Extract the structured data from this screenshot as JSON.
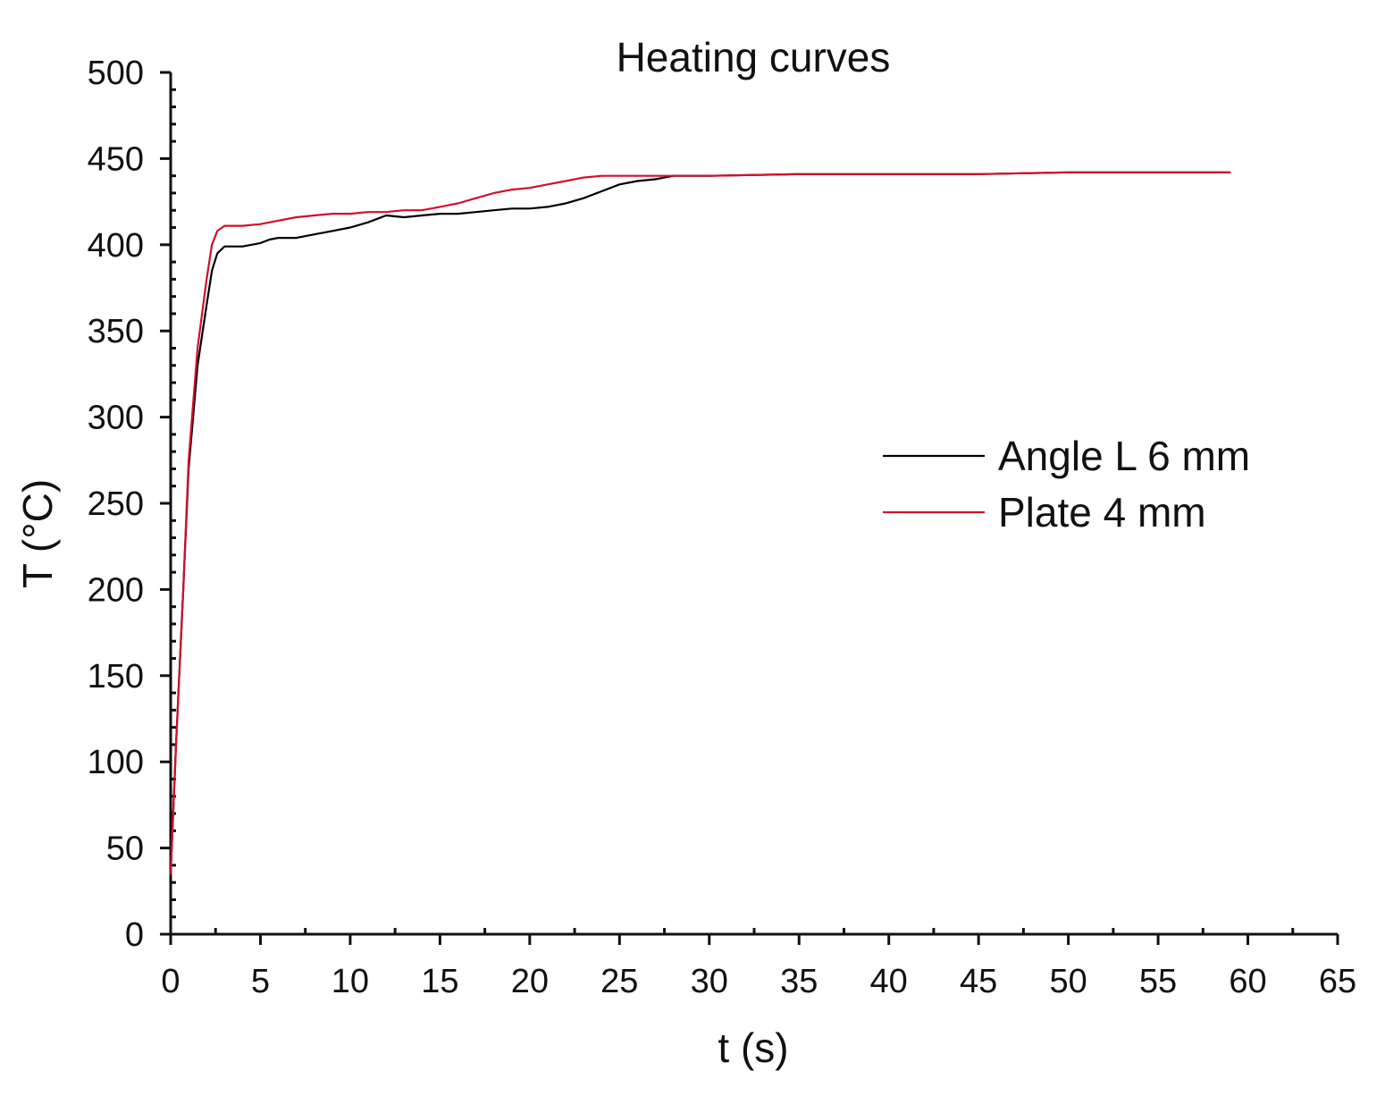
{
  "chart_data": {
    "type": "line",
    "title": "Heating curves",
    "xlabel": "t (s)",
    "ylabel": "T (°C)",
    "xlim": [
      0,
      65
    ],
    "ylim": [
      0,
      500
    ],
    "x_major_ticks": [
      0,
      5,
      10,
      15,
      20,
      25,
      30,
      35,
      40,
      45,
      50,
      55,
      60,
      65
    ],
    "x_minor_step": 2.5,
    "y_major_ticks": [
      0,
      50,
      100,
      150,
      200,
      250,
      300,
      350,
      400,
      450,
      500
    ],
    "y_minor_step": 10,
    "grid": false,
    "legend": {
      "placement": "right",
      "entries": [
        "Angle L 6 mm",
        "Plate 4 mm"
      ]
    },
    "series": [
      {
        "name": "Angle L 6 mm",
        "color": "#000000",
        "x": [
          0,
          0.3,
          0.7,
          1.0,
          1.5,
          2.0,
          2.3,
          2.6,
          3.0,
          4.0,
          5.0,
          5.5,
          6.0,
          7.0,
          8.0,
          9.0,
          10.0,
          11.0,
          12.0,
          13.0,
          14.0,
          15.0,
          16.0,
          17.0,
          18.0,
          19.0,
          20.0,
          21.0,
          22.0,
          23.0,
          24.0,
          25.0,
          26.0,
          27.0,
          28.0,
          30.0,
          35.0,
          40.0,
          45.0,
          50.0,
          55.0,
          59.0
        ],
        "y": [
          35,
          110,
          200,
          270,
          330,
          365,
          385,
          395,
          399,
          399,
          401,
          403,
          404,
          404,
          406,
          408,
          410,
          413,
          417,
          416,
          417,
          418,
          418,
          419,
          420,
          421,
          421,
          422,
          424,
          427,
          431,
          435,
          437,
          438,
          440,
          440,
          441,
          441,
          441,
          442,
          442,
          442
        ]
      },
      {
        "name": "Plate 4 mm",
        "color": "#d0102a",
        "x": [
          0,
          0.3,
          0.7,
          1.0,
          1.5,
          2.0,
          2.3,
          2.6,
          3.0,
          4.0,
          5.0,
          6.0,
          7.0,
          8.0,
          9.0,
          10.0,
          11.0,
          12.0,
          13.0,
          14.0,
          15.0,
          16.0,
          17.0,
          18.0,
          19.0,
          20.0,
          21.0,
          22.0,
          23.0,
          24.0,
          25.0,
          26.0,
          28.0,
          30.0,
          35.0,
          40.0,
          45.0,
          50.0,
          55.0,
          59.0
        ],
        "y": [
          35,
          110,
          200,
          275,
          340,
          380,
          400,
          408,
          411,
          411,
          412,
          414,
          416,
          417,
          418,
          418,
          419,
          419,
          420,
          420,
          422,
          424,
          427,
          430,
          432,
          433,
          435,
          437,
          439,
          440,
          440,
          440,
          440,
          440,
          441,
          441,
          441,
          442,
          442,
          442
        ]
      }
    ]
  }
}
